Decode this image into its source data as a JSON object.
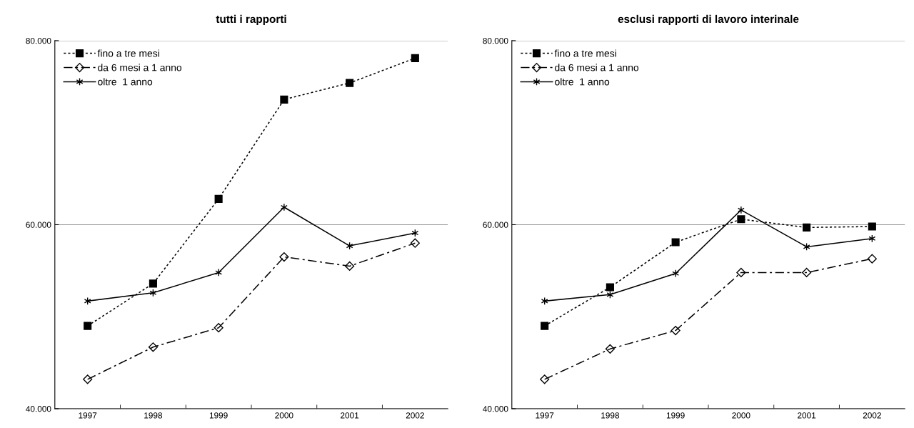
{
  "chart_data": [
    {
      "type": "line",
      "title": "tutti i rapporti",
      "categories": [
        "1997",
        "1998",
        "1999",
        "2000",
        "2001",
        "2002"
      ],
      "ylim": [
        40000,
        80000
      ],
      "yticks": [
        {
          "value": 40000,
          "label": "40.000"
        },
        {
          "value": 60000,
          "label": "60.000"
        },
        {
          "value": 80000,
          "label": "80.000"
        }
      ],
      "grid": "y",
      "legend": "top left",
      "series": [
        {
          "name": "fino a tre mesi",
          "color": "#000000",
          "marker": "square",
          "line_style": "dotted",
          "values": [
            49000,
            53600,
            62800,
            73600,
            75400,
            78100
          ]
        },
        {
          "name": "da 6 mesi a 1 anno",
          "color": "#000000",
          "marker": "diamond",
          "line_style": "dashed",
          "values": [
            43200,
            46700,
            48800,
            56500,
            55500,
            58000
          ]
        },
        {
          "name": "oltre  1 anno",
          "color": "#000000",
          "marker": "cross",
          "line_style": "solid",
          "values": [
            51700,
            52600,
            54800,
            61900,
            57700,
            59100
          ]
        }
      ]
    },
    {
      "type": "line",
      "title": "esclusi rapporti di lavoro interinale",
      "categories": [
        "1997",
        "1998",
        "1999",
        "2000",
        "2001",
        "2002"
      ],
      "ylim": [
        40000,
        80000
      ],
      "yticks": [
        {
          "value": 40000,
          "label": "40.000"
        },
        {
          "value": 60000,
          "label": "60.000"
        },
        {
          "value": 80000,
          "label": "80.000"
        }
      ],
      "grid": "y",
      "legend": "top left",
      "series": [
        {
          "name": "fino a tre mesi",
          "color": "#000000",
          "marker": "square",
          "line_style": "dotted",
          "values": [
            49000,
            53200,
            58100,
            60600,
            59700,
            59800
          ]
        },
        {
          "name": "da 6 mesi a 1 anno",
          "color": "#000000",
          "marker": "diamond",
          "line_style": "dashed",
          "values": [
            43200,
            46500,
            48500,
            54800,
            54800,
            56300
          ]
        },
        {
          "name": "oltre  1 anno",
          "color": "#000000",
          "marker": "cross",
          "line_style": "solid",
          "values": [
            51700,
            52400,
            54700,
            61600,
            57600,
            58500
          ]
        }
      ]
    }
  ]
}
